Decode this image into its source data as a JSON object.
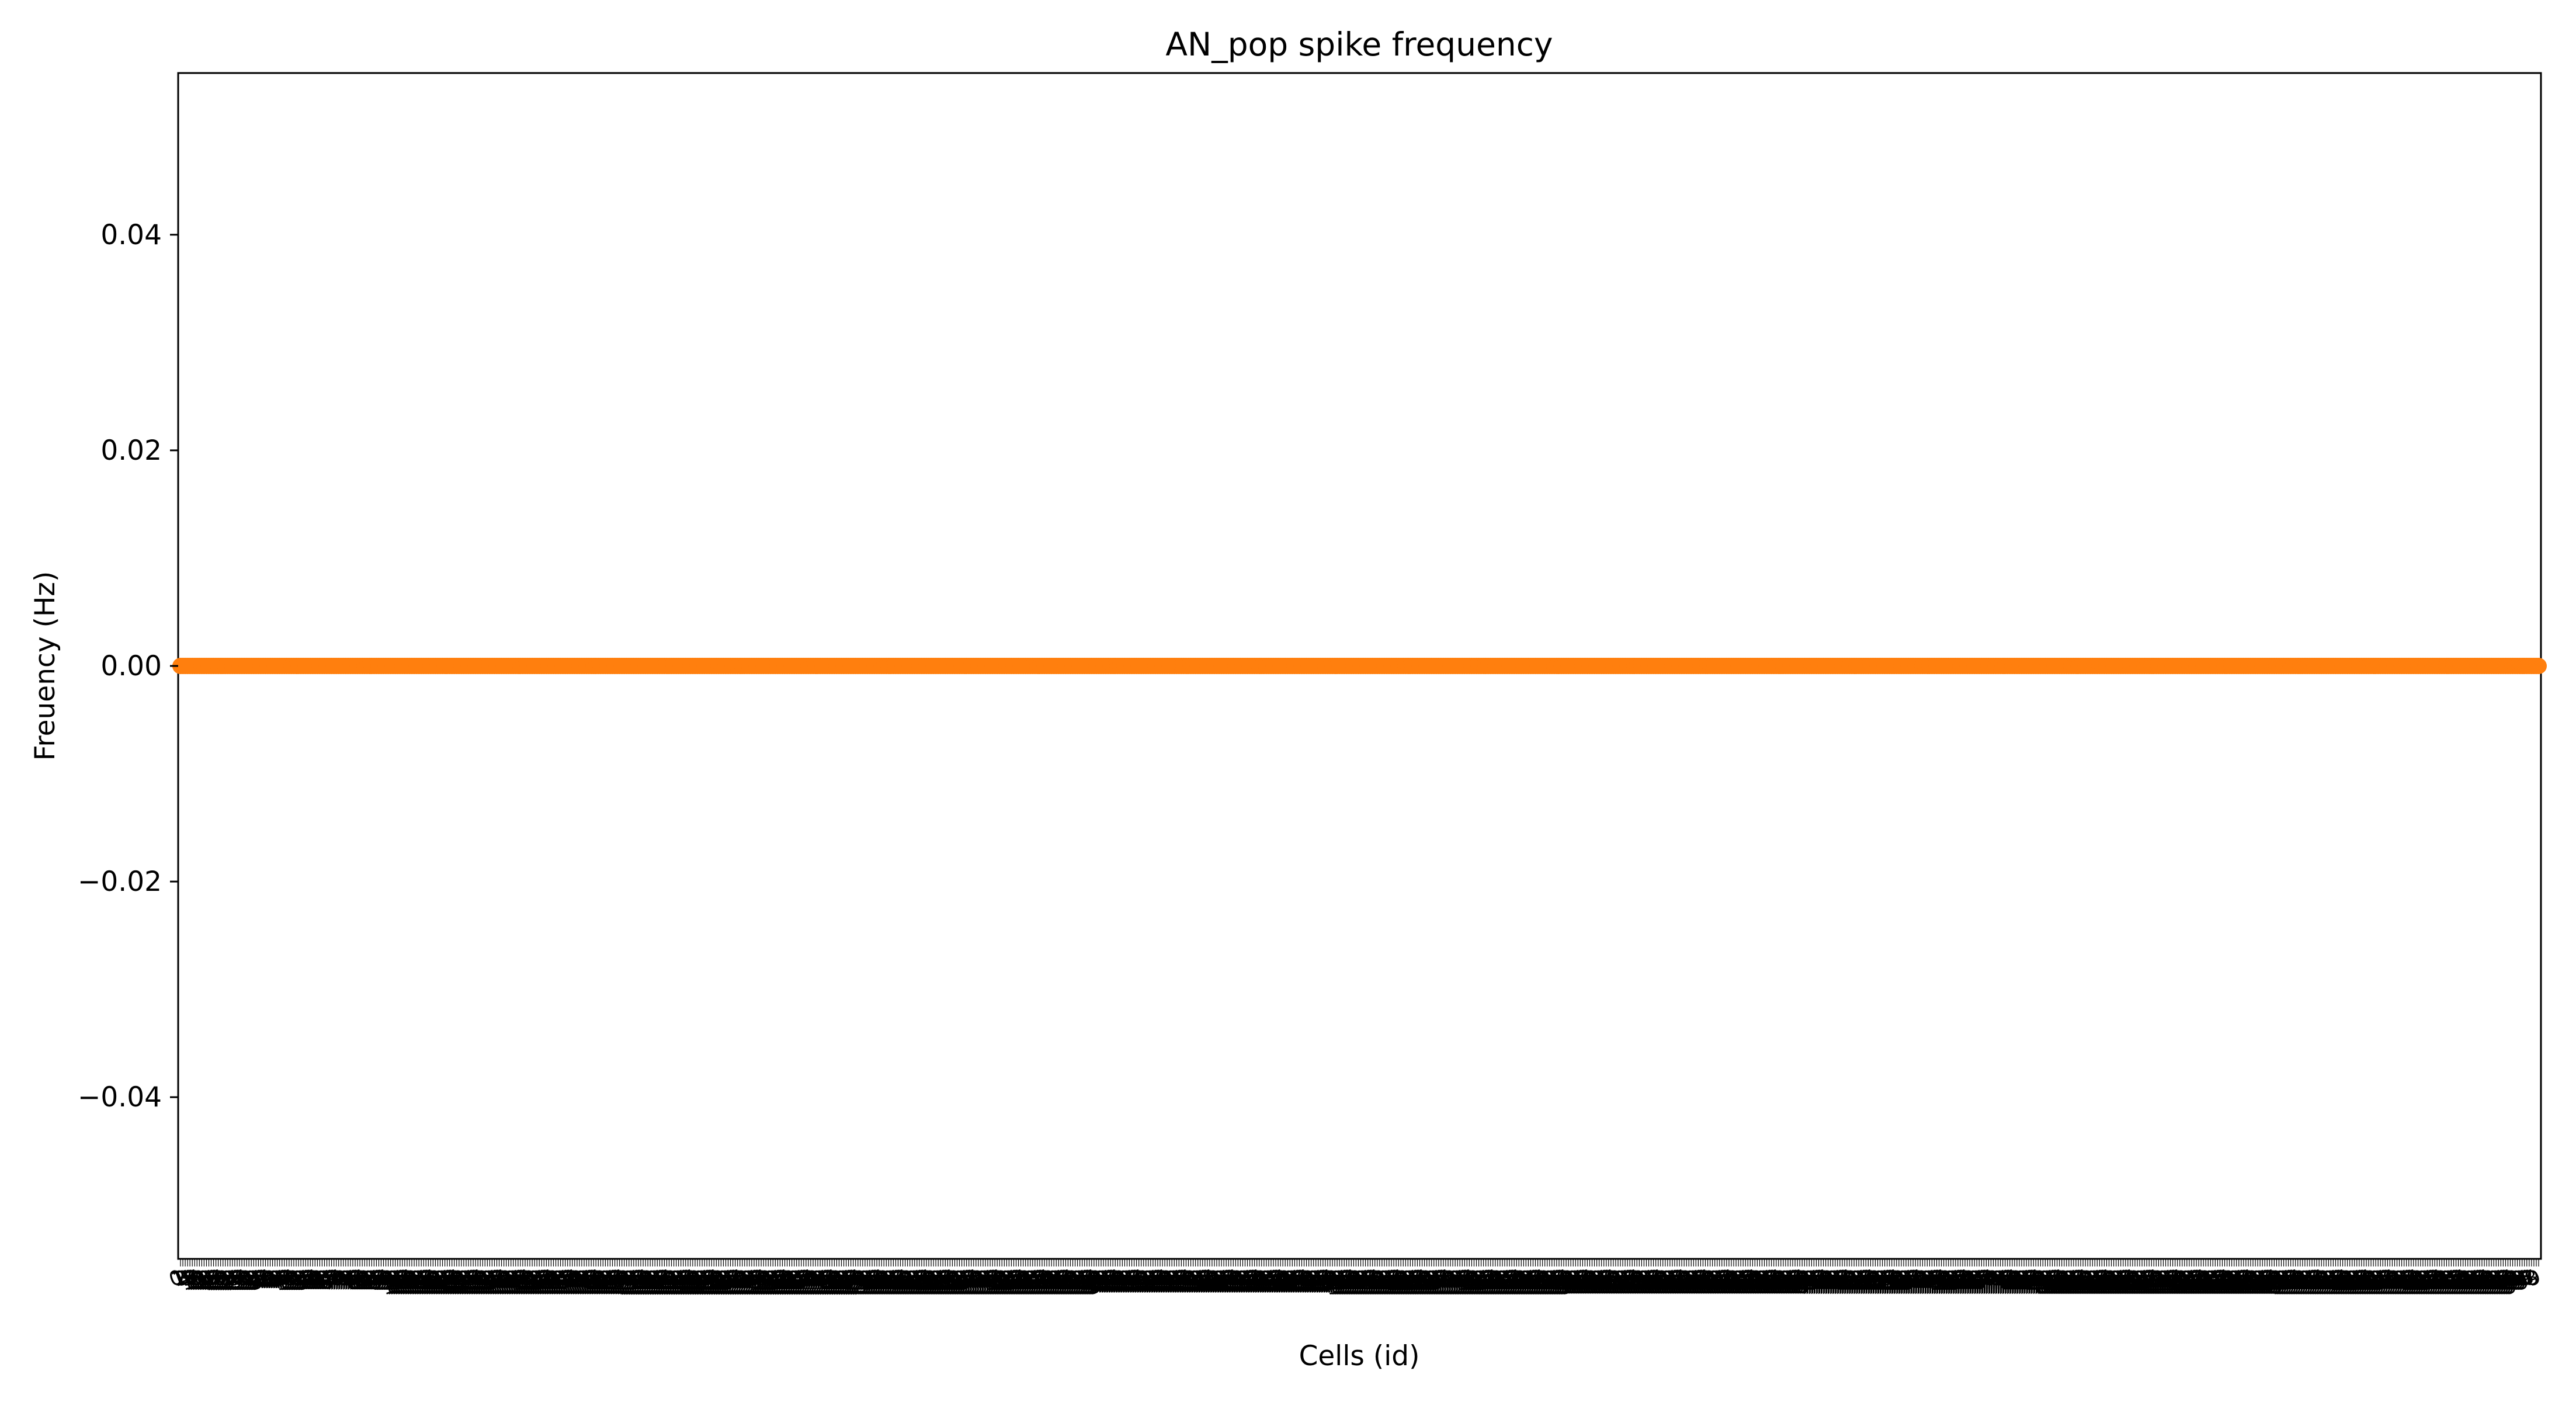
{
  "chart_data": {
    "type": "scatter",
    "title": "AN_pop spike frequency",
    "xlabel": "Cells (id)",
    "ylabel": "Freuency (Hz)",
    "ylim": [
      -0.055,
      0.055
    ],
    "yticks": [
      -0.04,
      -0.02,
      0.0,
      0.02,
      0.04
    ],
    "ytick_labels": [
      "−0.04",
      "−0.02",
      "0.00",
      "0.02",
      "0.04"
    ],
    "x_range": [
      0,
      999
    ],
    "xtick_labels_rendered": "overlapping illegible integer cell ids along the whole x axis",
    "grid": false,
    "legend": "none",
    "series": [
      {
        "color": "#ff7f0e",
        "x_start": 0,
        "x_end": 999,
        "y_constant": 0.0
      }
    ]
  }
}
